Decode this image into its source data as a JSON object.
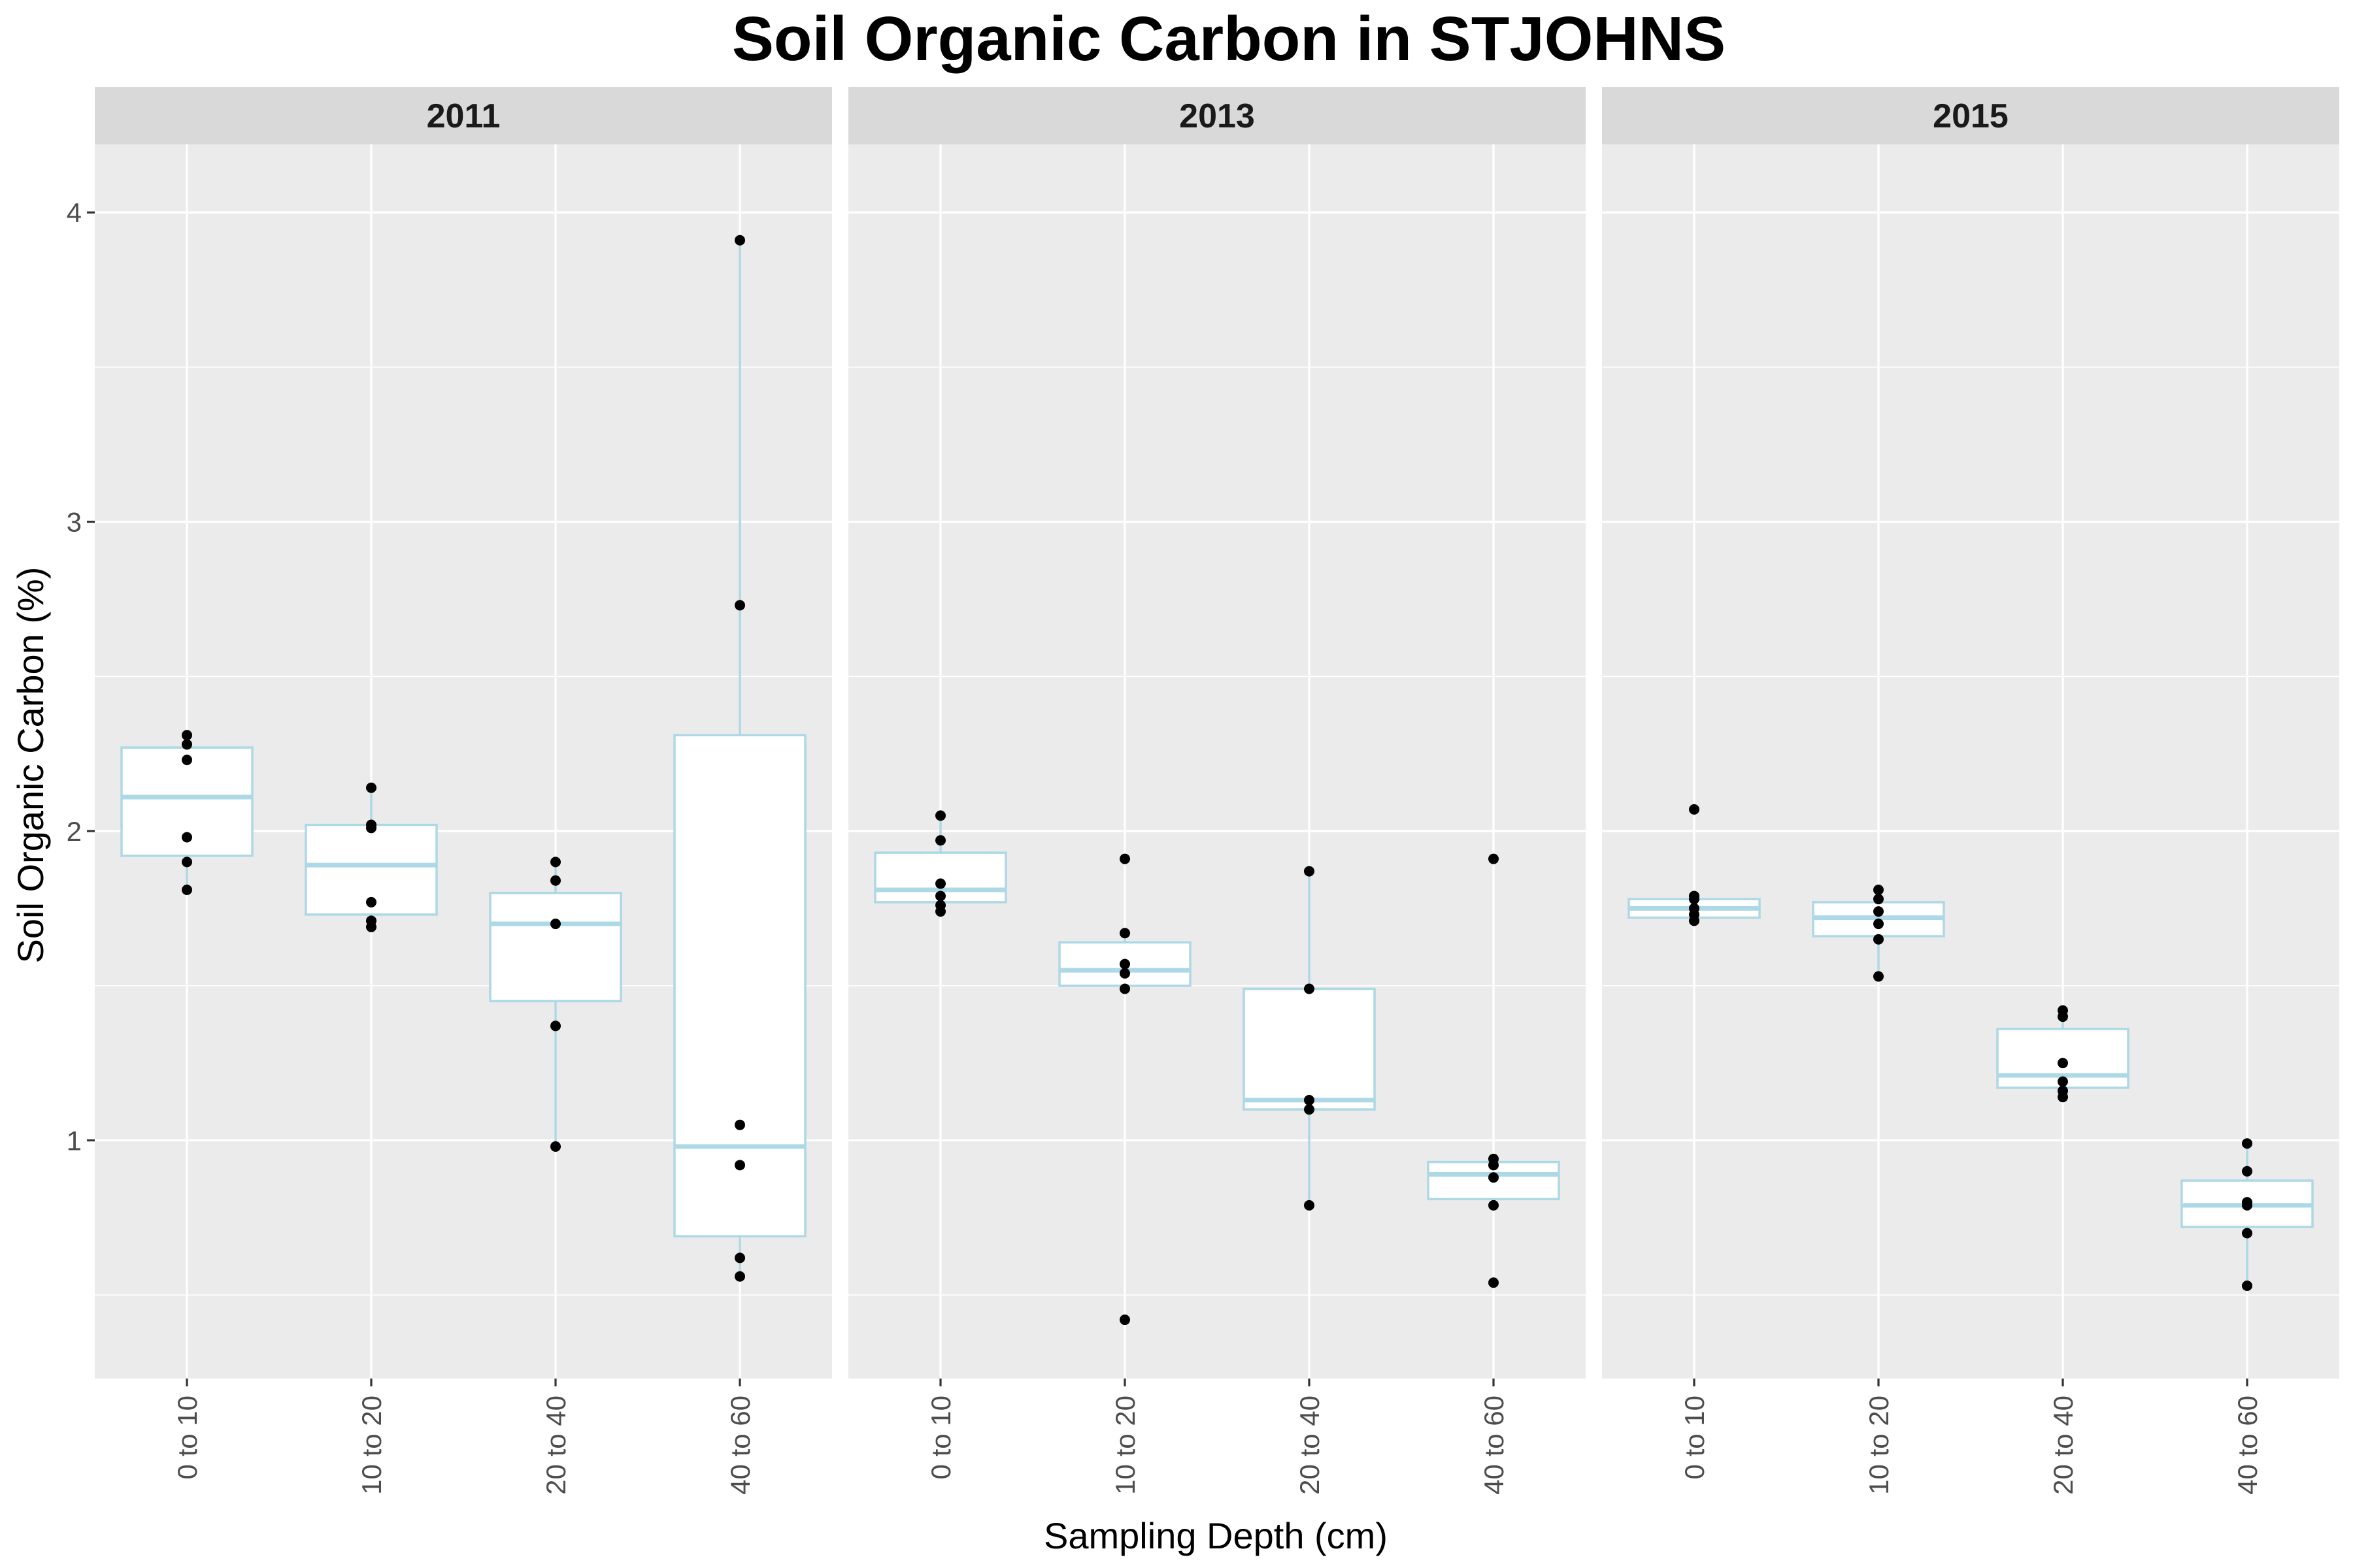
{
  "chart_data": {
    "type": "boxplot",
    "title": "Soil Organic Carbon in STJOHNS",
    "xlabel": "Sampling Depth (cm)",
    "ylabel": "Soil Organic Carbon (%)",
    "ylim": [
      0.23,
      4.22
    ],
    "yticks": [
      1,
      2,
      3,
      4
    ],
    "grid": true,
    "box_color": "#add8e6",
    "panel_color": "#ebebeb",
    "strip_color": "#d9d9d9",
    "categories": [
      "0 to 10",
      "10 to 20",
      "20 to 40",
      "40 to 60"
    ],
    "facets": [
      {
        "label": "2011",
        "boxes": [
          {
            "category": "0 to 10",
            "whisker_low": 1.81,
            "q1": 1.92,
            "median": 2.11,
            "q3": 2.27,
            "whisker_high": 2.31,
            "points": [
              1.81,
              1.9,
              1.98,
              2.23,
              2.28,
              2.31
            ]
          },
          {
            "category": "10 to 20",
            "whisker_low": 1.69,
            "q1": 1.73,
            "median": 1.89,
            "q3": 2.02,
            "whisker_high": 2.14,
            "points": [
              1.69,
              1.71,
              1.77,
              2.01,
              2.02,
              2.14
            ]
          },
          {
            "category": "20 to 40",
            "whisker_low": 0.98,
            "q1": 1.45,
            "median": 1.7,
            "q3": 1.8,
            "whisker_high": 1.9,
            "points": [
              0.98,
              1.37,
              1.7,
              1.84,
              1.9
            ]
          },
          {
            "category": "40 to 60",
            "whisker_low": 0.56,
            "q1": 0.69,
            "median": 0.98,
            "q3": 2.31,
            "whisker_high": 3.91,
            "points": [
              0.56,
              0.62,
              0.92,
              1.05,
              2.73,
              3.91
            ]
          }
        ]
      },
      {
        "label": "2013",
        "boxes": [
          {
            "category": "0 to 10",
            "whisker_low": 1.74,
            "q1": 1.77,
            "median": 1.81,
            "q3": 1.93,
            "whisker_high": 2.05,
            "points": [
              1.74,
              1.76,
              1.79,
              1.83,
              1.97,
              2.05
            ]
          },
          {
            "category": "10 to 20",
            "whisker_low": 1.49,
            "q1": 1.5,
            "median": 1.55,
            "q3": 1.64,
            "whisker_high": 1.67,
            "points": [
              0.42,
              1.49,
              1.54,
              1.57,
              1.67,
              1.91
            ]
          },
          {
            "category": "20 to 40",
            "whisker_low": 0.79,
            "q1": 1.1,
            "median": 1.13,
            "q3": 1.49,
            "whisker_high": 1.87,
            "points": [
              0.79,
              1.1,
              1.13,
              1.49,
              1.87
            ]
          },
          {
            "category": "40 to 60",
            "whisker_low": 0.79,
            "q1": 0.81,
            "median": 0.89,
            "q3": 0.93,
            "whisker_high": 0.94,
            "points": [
              0.54,
              0.79,
              0.88,
              0.92,
              0.94,
              1.91
            ]
          }
        ]
      },
      {
        "label": "2015",
        "boxes": [
          {
            "category": "0 to 10",
            "whisker_low": 1.71,
            "q1": 1.72,
            "median": 1.75,
            "q3": 1.78,
            "whisker_high": 1.79,
            "points": [
              1.71,
              1.73,
              1.75,
              1.78,
              1.79,
              2.07
            ]
          },
          {
            "category": "10 to 20",
            "whisker_low": 1.53,
            "q1": 1.66,
            "median": 1.72,
            "q3": 1.77,
            "whisker_high": 1.81,
            "points": [
              1.53,
              1.65,
              1.7,
              1.74,
              1.78,
              1.81
            ]
          },
          {
            "category": "20 to 40",
            "whisker_low": 1.14,
            "q1": 1.17,
            "median": 1.21,
            "q3": 1.36,
            "whisker_high": 1.42,
            "points": [
              1.14,
              1.16,
              1.19,
              1.25,
              1.4,
              1.42
            ]
          },
          {
            "category": "40 to 60",
            "whisker_low": 0.53,
            "q1": 0.72,
            "median": 0.79,
            "q3": 0.87,
            "whisker_high": 0.99,
            "points": [
              0.53,
              0.7,
              0.79,
              0.8,
              0.9,
              0.99
            ]
          }
        ]
      }
    ]
  }
}
